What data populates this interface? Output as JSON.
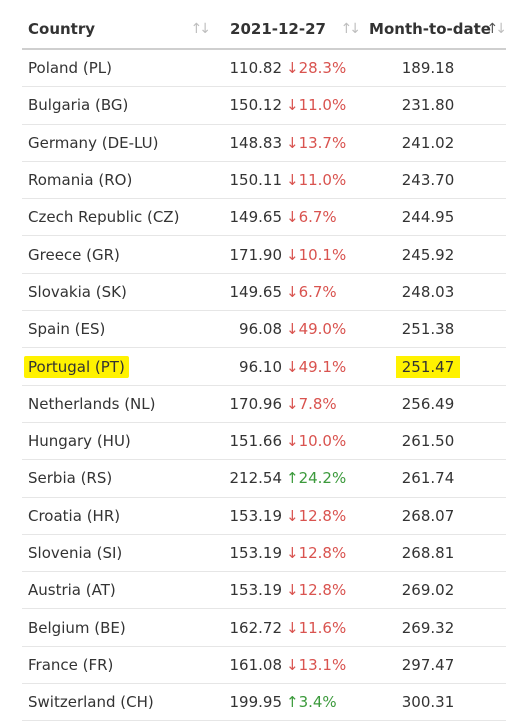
{
  "headers": {
    "country": "Country",
    "date": "2021-12-27",
    "mtd": "Month-to-date"
  },
  "icons": {
    "sort_neutral": "⇅",
    "sort_asc": "⇅"
  },
  "colors": {
    "down": "#d9534f",
    "up": "#3c9a3c",
    "highlight": "#fff200"
  },
  "rows": [
    {
      "country": "Poland (PL)",
      "price": "110.82",
      "dir": "down",
      "change": "28.3%",
      "mtd": "189.18"
    },
    {
      "country": "Bulgaria (BG)",
      "price": "150.12",
      "dir": "down",
      "change": "11.0%",
      "mtd": "231.80"
    },
    {
      "country": "Germany (DE-LU)",
      "price": "148.83",
      "dir": "down",
      "change": "13.7%",
      "mtd": "241.02"
    },
    {
      "country": "Romania (RO)",
      "price": "150.11",
      "dir": "down",
      "change": "11.0%",
      "mtd": "243.70"
    },
    {
      "country": "Czech Republic (CZ)",
      "price": "149.65",
      "dir": "down",
      "change": "6.7%",
      "mtd": "244.95"
    },
    {
      "country": "Greece (GR)",
      "price": "171.90",
      "dir": "down",
      "change": "10.1%",
      "mtd": "245.92"
    },
    {
      "country": "Slovakia (SK)",
      "price": "149.65",
      "dir": "down",
      "change": "6.7%",
      "mtd": "248.03"
    },
    {
      "country": "Spain (ES)",
      "price": "96.08",
      "dir": "down",
      "change": "49.0%",
      "mtd": "251.38"
    },
    {
      "country": "Portugal (PT)",
      "price": "96.10",
      "dir": "down",
      "change": "49.1%",
      "mtd": "251.47",
      "highlight": true
    },
    {
      "country": "Netherlands (NL)",
      "price": "170.96",
      "dir": "down",
      "change": "7.8%",
      "mtd": "256.49"
    },
    {
      "country": "Hungary (HU)",
      "price": "151.66",
      "dir": "down",
      "change": "10.0%",
      "mtd": "261.50"
    },
    {
      "country": "Serbia (RS)",
      "price": "212.54",
      "dir": "up",
      "change": "24.2%",
      "mtd": "261.74"
    },
    {
      "country": "Croatia (HR)",
      "price": "153.19",
      "dir": "down",
      "change": "12.8%",
      "mtd": "268.07"
    },
    {
      "country": "Slovenia (SI)",
      "price": "153.19",
      "dir": "down",
      "change": "12.8%",
      "mtd": "268.81"
    },
    {
      "country": "Austria (AT)",
      "price": "153.19",
      "dir": "down",
      "change": "12.8%",
      "mtd": "269.02"
    },
    {
      "country": "Belgium (BE)",
      "price": "162.72",
      "dir": "down",
      "change": "11.6%",
      "mtd": "269.32"
    },
    {
      "country": "France (FR)",
      "price": "161.08",
      "dir": "down",
      "change": "13.1%",
      "mtd": "297.47"
    },
    {
      "country": "Switzerland (CH)",
      "price": "199.95",
      "dir": "up",
      "change": "3.4%",
      "mtd": "300.31"
    }
  ]
}
